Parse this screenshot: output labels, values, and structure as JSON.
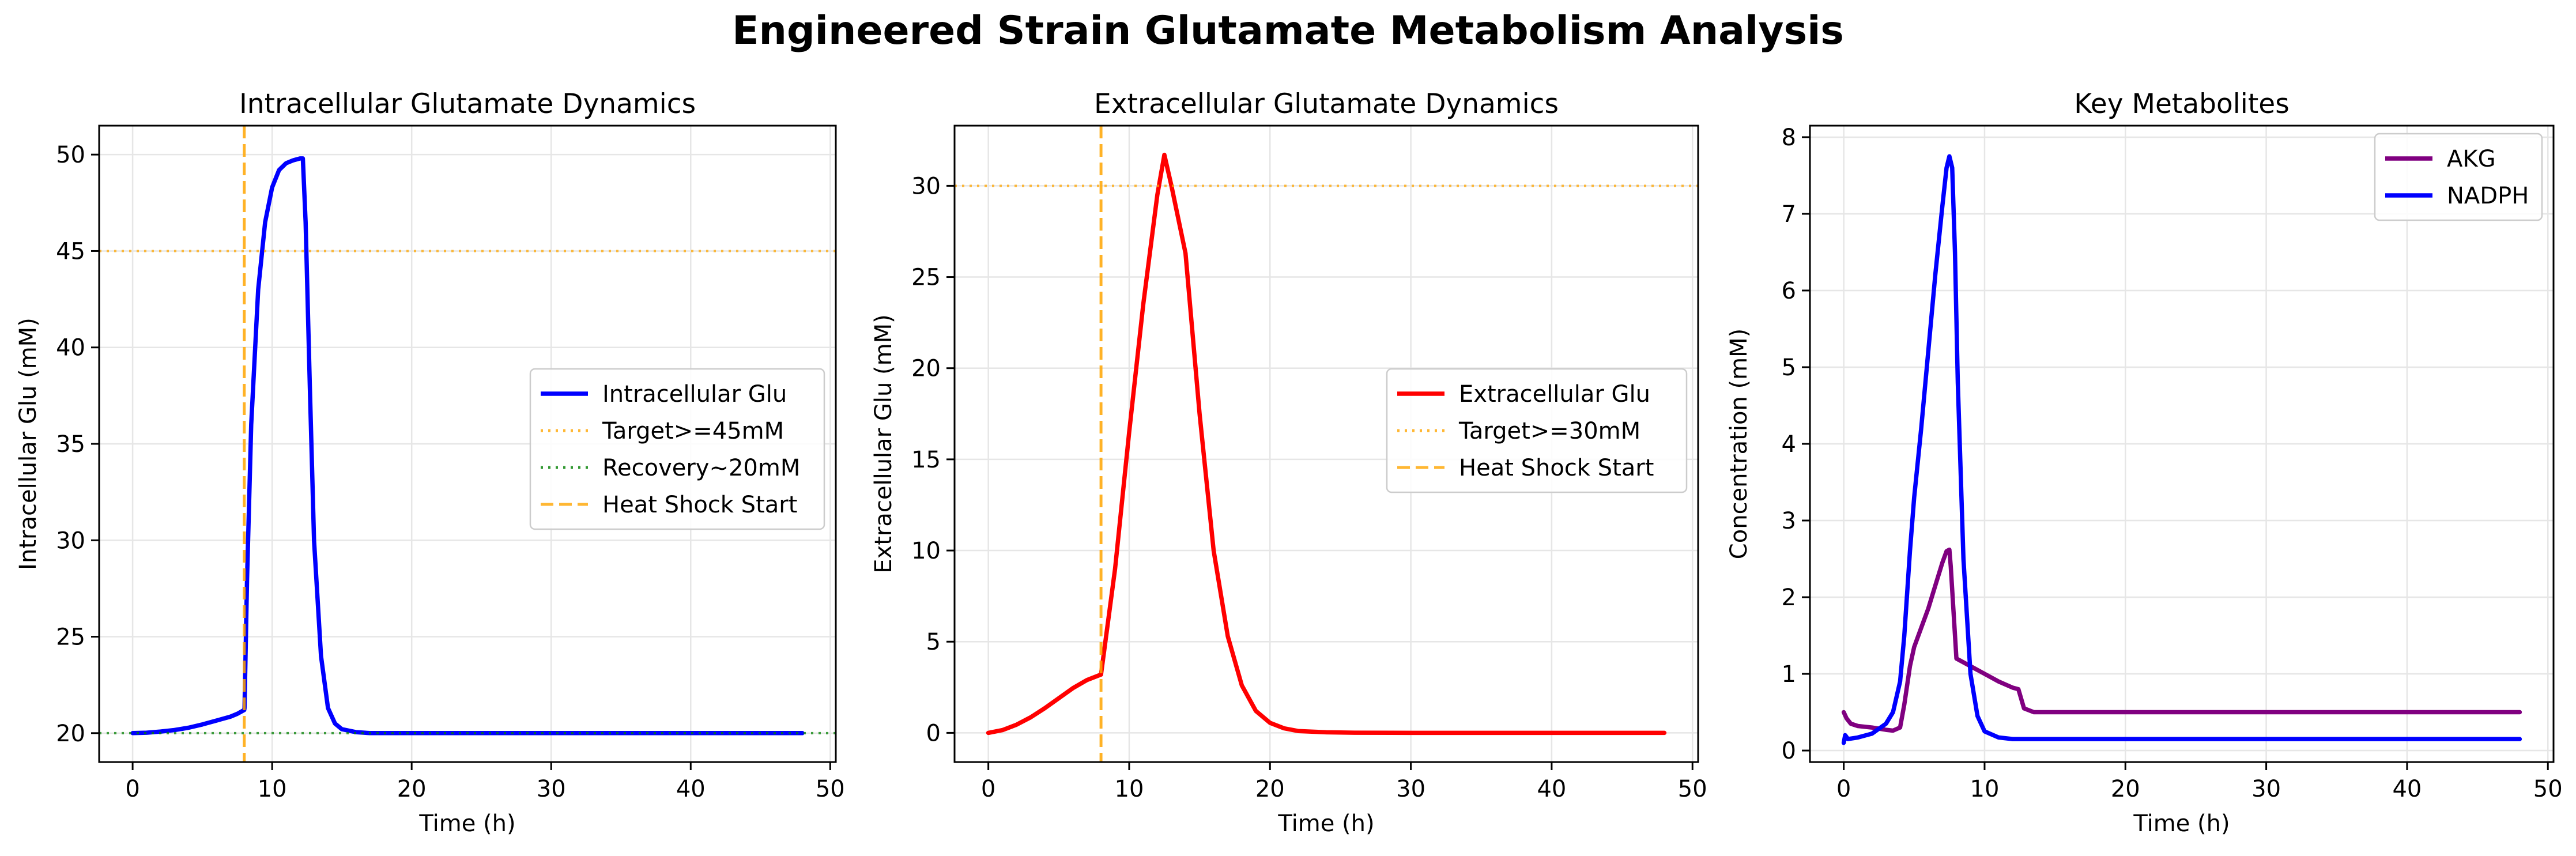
{
  "suptitle": "Engineered Strain Glutamate Metabolism Analysis",
  "colors": {
    "intracellular": "#0000ff",
    "extracellular": "#ff0000",
    "akg": "#800080",
    "nadph": "#0000ff",
    "target": "#ffa500",
    "recovery": "#008000",
    "heat_shock": "#ffa500",
    "grid": "#e6e6e6"
  },
  "chart_data": [
    {
      "type": "line",
      "title": "Intracellular Glutamate Dynamics",
      "xlabel": "Time (h)",
      "ylabel": "Intracellular Glu (mM)",
      "xlim": [
        -2.4,
        50.4
      ],
      "ylim": [
        18.5,
        51.5
      ],
      "xticks": [
        0,
        10,
        20,
        30,
        40,
        50
      ],
      "yticks": [
        20,
        25,
        30,
        35,
        40,
        45,
        50
      ],
      "grid": true,
      "legend": "center-right",
      "series": [
        {
          "name": "Intracellular Glu",
          "color": "#0000ff",
          "style": "solid",
          "x": [
            0,
            1,
            2,
            3,
            4,
            5,
            6,
            7,
            7.5,
            8,
            8.02,
            8.2,
            8.5,
            9,
            9.5,
            10,
            10.5,
            11,
            11.5,
            12,
            12.2,
            12.4,
            12.7,
            13,
            13.5,
            14,
            14.5,
            15,
            16,
            17,
            20,
            30,
            40,
            48
          ],
          "y": [
            20,
            20.02,
            20.08,
            20.16,
            20.28,
            20.45,
            20.65,
            20.85,
            21.0,
            21.2,
            21.3,
            28,
            36,
            43,
            46.5,
            48.3,
            49.2,
            49.55,
            49.7,
            49.8,
            49.8,
            46.5,
            38,
            30,
            24,
            21.3,
            20.5,
            20.2,
            20.05,
            20.0,
            20.0,
            20.0,
            20.0,
            20.0
          ]
        },
        {
          "name": "Target>=45mM",
          "color": "#ffa500",
          "style": "dotted",
          "hline": 45
        },
        {
          "name": "Recovery~20mM",
          "color": "#008000",
          "style": "dotted",
          "hline": 20
        },
        {
          "name": "Heat Shock Start",
          "color": "#ffa500",
          "style": "dashed",
          "vline": 8
        }
      ]
    },
    {
      "type": "line",
      "title": "Extracellular Glutamate Dynamics",
      "xlabel": "Time (h)",
      "ylabel": "Extracellular Glu (mM)",
      "xlim": [
        -2.4,
        50.4
      ],
      "ylim": [
        -1.6,
        33.3
      ],
      "xticks": [
        0,
        10,
        20,
        30,
        40,
        50
      ],
      "yticks": [
        0,
        5,
        10,
        15,
        20,
        25,
        30
      ],
      "grid": true,
      "legend": "center-right",
      "series": [
        {
          "name": "Extracellular Glu",
          "color": "#ff0000",
          "style": "solid",
          "x": [
            0,
            1,
            2,
            3,
            4,
            5,
            6,
            7,
            8,
            9,
            10,
            11,
            12,
            12.5,
            13,
            14,
            15,
            16,
            17,
            18,
            19,
            20,
            21,
            22,
            24,
            26,
            30,
            40,
            48
          ],
          "y": [
            0,
            0.15,
            0.45,
            0.85,
            1.35,
            1.9,
            2.45,
            2.9,
            3.2,
            9,
            16.5,
            23.5,
            29.5,
            31.7,
            30.0,
            26.3,
            17.5,
            10.0,
            5.3,
            2.6,
            1.2,
            0.55,
            0.25,
            0.1,
            0.03,
            0.01,
            0.0,
            0.0,
            0.0
          ]
        },
        {
          "name": "Target>=30mM",
          "color": "#ffa500",
          "style": "dotted",
          "hline": 30
        },
        {
          "name": "Heat Shock Start",
          "color": "#ffa500",
          "style": "dashed",
          "vline": 8
        }
      ]
    },
    {
      "type": "line",
      "title": "Key Metabolites",
      "xlabel": "Time (h)",
      "ylabel": "Concentration (mM)",
      "xlim": [
        -2.4,
        50.4
      ],
      "ylim": [
        -0.15,
        8.15
      ],
      "xticks": [
        0,
        10,
        20,
        30,
        40,
        50
      ],
      "yticks": [
        0,
        1,
        2,
        3,
        4,
        5,
        6,
        7,
        8
      ],
      "grid": true,
      "legend": "top-right",
      "series": [
        {
          "name": "AKG",
          "color": "#800080",
          "style": "solid",
          "x": [
            0,
            0.2,
            0.5,
            1,
            2,
            3,
            3.5,
            4,
            4.3,
            4.7,
            5,
            5.5,
            6,
            6.5,
            7,
            7.3,
            7.5,
            7.6,
            7.8,
            8,
            9,
            10,
            11,
            12,
            12.4,
            12.8,
            13.5,
            15,
            20,
            30,
            40,
            48
          ],
          "y": [
            0.5,
            0.42,
            0.35,
            0.32,
            0.3,
            0.27,
            0.26,
            0.3,
            0.6,
            1.1,
            1.35,
            1.6,
            1.85,
            2.15,
            2.45,
            2.6,
            2.62,
            2.4,
            1.8,
            1.2,
            1.1,
            1.0,
            0.9,
            0.82,
            0.8,
            0.55,
            0.5,
            0.5,
            0.5,
            0.5,
            0.5,
            0.5
          ]
        },
        {
          "name": "NADPH",
          "color": "#0000ff",
          "style": "solid",
          "x": [
            0,
            0.1,
            0.3,
            1,
            2,
            3,
            3.5,
            4,
            4.3,
            4.7,
            5,
            5.5,
            6,
            6.5,
            7,
            7.3,
            7.5,
            7.7,
            7.9,
            8.1,
            8.5,
            9,
            9.5,
            10,
            11,
            12,
            15,
            20,
            30,
            40,
            48
          ],
          "y": [
            0.1,
            0.2,
            0.15,
            0.17,
            0.22,
            0.35,
            0.5,
            0.9,
            1.5,
            2.6,
            3.3,
            4.2,
            5.2,
            6.2,
            7.1,
            7.6,
            7.75,
            7.6,
            6.5,
            4.8,
            2.5,
            1.0,
            0.45,
            0.25,
            0.17,
            0.15,
            0.15,
            0.15,
            0.15,
            0.15,
            0.15
          ]
        }
      ]
    }
  ]
}
